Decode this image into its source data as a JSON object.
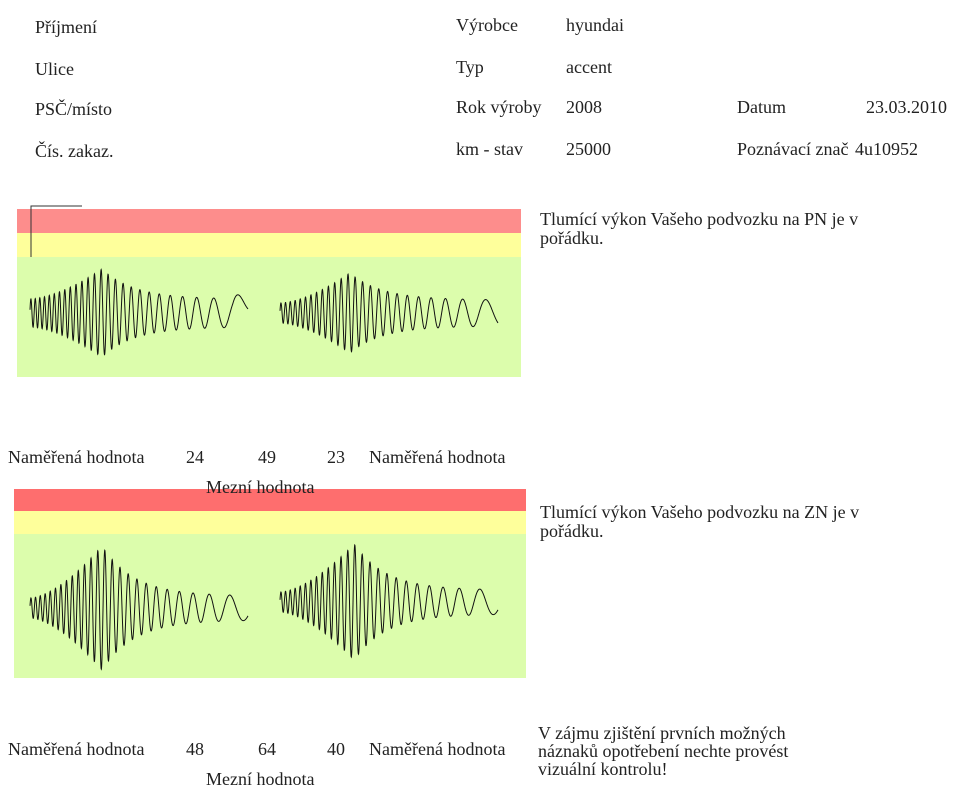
{
  "header": {
    "left_labels": [
      "Příjmení",
      "Ulice",
      "PSČ/místo",
      "Čís. zakaz."
    ],
    "vehicle_labels": [
      "Výrobce",
      "Typ",
      "Rok výroby",
      "km - stav"
    ],
    "vehicle_values": [
      "hyundai",
      "accent",
      "2008",
      "25000"
    ],
    "date_label": "Datum",
    "date_value": "23.03.2010",
    "plate_label": "Poznávací znač",
    "plate_value": "4u10952"
  },
  "front": {
    "message": "Tlumící výkon Vašeho podvozku na PN je v pořádku.",
    "measured_label_left": "Naměřená hodnota",
    "measured_left": "24",
    "limit": "49",
    "measured_right": "23",
    "measured_label_right": "Naměřená hodnota",
    "limit_label": "Mezní hodnota"
  },
  "rear": {
    "message": "Tlumící výkon Vašeho podvozku na ZN je v pořádku.",
    "measured_label_left": "Naměřená hodnota",
    "measured_left": "48",
    "limit": "64",
    "measured_right": "40",
    "measured_label_right": "Naměřená hodnota",
    "limit_label": "Mezní hodnota"
  },
  "footer_note": "V zájmu zjištění prvních možných náznaků opotřebení nechte provést vizuální kontrolu!",
  "colors": {
    "red_band": "#fd8d8c",
    "red_band_rear": "#fe6e6e",
    "yellow_band": "#feff9b",
    "green_area": "#dcfdac",
    "trace": "#111111"
  }
}
